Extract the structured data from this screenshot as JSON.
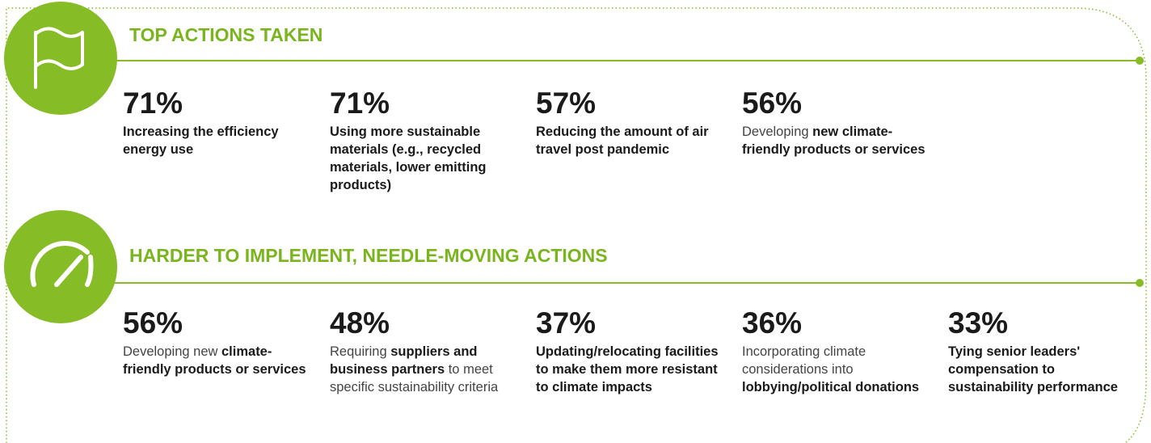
{
  "sections": [
    {
      "title": "TOP ACTIONS TAKEN",
      "items": [
        {
          "value": "71%",
          "description": [
            {
              "text": "Increasing the efficiency energy use",
              "bold": true
            }
          ]
        },
        {
          "value": "71%",
          "description": [
            {
              "text": "Using more sustainable materials (e.g., recycled materials, lower emitting products)",
              "bold": true
            }
          ]
        },
        {
          "value": "57%",
          "description": [
            {
              "text": "Reducing the amount of air travel post pandemic",
              "bold": true
            }
          ]
        },
        {
          "value": "56%",
          "description": [
            {
              "text": "Developing ",
              "bold": false
            },
            {
              "text": "new climate-friendly products or services",
              "bold": true
            }
          ]
        }
      ]
    },
    {
      "title": "HARDER TO IMPLEMENT, NEEDLE-MOVING ACTIONS",
      "items": [
        {
          "value": "56%",
          "description": [
            {
              "text": "Developing new ",
              "bold": false
            },
            {
              "text": "climate-friendly products or services",
              "bold": true
            }
          ]
        },
        {
          "value": "48%",
          "description": [
            {
              "text": "Requiring ",
              "bold": false
            },
            {
              "text": "suppliers and business partners",
              "bold": true
            },
            {
              "text": " to meet specific sustainability criteria",
              "bold": false
            }
          ]
        },
        {
          "value": "37%",
          "description": [
            {
              "text": "Updating/relocating facilities to make them more resistant to climate impacts",
              "bold": true
            }
          ]
        },
        {
          "value": "36%",
          "description": [
            {
              "text": "Incorporating climate considerations into ",
              "bold": false
            },
            {
              "text": "lobbying/political donations",
              "bold": true
            }
          ]
        },
        {
          "value": "33%",
          "description": [
            {
              "text": "Tying senior leaders' compensation to sustainability performance",
              "bold": true
            }
          ]
        }
      ]
    }
  ]
}
